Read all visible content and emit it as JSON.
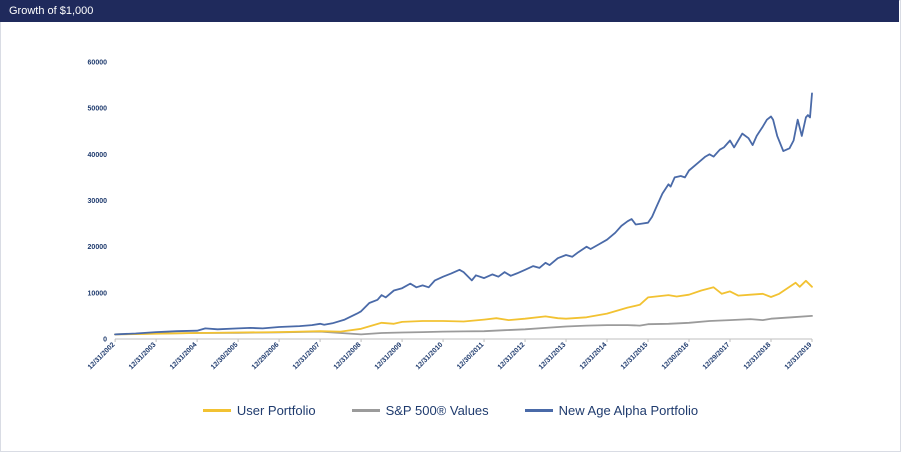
{
  "header": {
    "title": "Growth of $1,000"
  },
  "chart_data": {
    "type": "line",
    "title": "Growth of $1,000",
    "xlabel": "",
    "ylabel": "",
    "ylim": [
      0,
      60000
    ],
    "yticks": [
      0,
      10000,
      20000,
      30000,
      40000,
      50000,
      60000
    ],
    "xlim": [
      2002.997,
      2020.0
    ],
    "xtick_labels": [
      "12/31/2002",
      "12/31/2003",
      "12/31/2004",
      "12/30/2005",
      "12/29/2006",
      "12/31/2007",
      "12/31/2008",
      "12/31/2009",
      "12/31/2010",
      "12/30/2011",
      "12/31/2012",
      "12/31/2013",
      "12/31/2014",
      "12/31/2015",
      "12/30/2016",
      "12/29/2017",
      "12/31/2018",
      "12/31/2019"
    ],
    "xtick_years": [
      2003,
      2004,
      2005,
      2006,
      2007,
      2008,
      2009,
      2010,
      2011,
      2012,
      2013,
      2014,
      2015,
      2016,
      2017,
      2018,
      2019,
      2020
    ],
    "grid": false,
    "legend_position": "bottom",
    "series": [
      {
        "name": "User Portfolio",
        "color": "#f2c232",
        "points": [
          [
            2003,
            1000
          ],
          [
            2004,
            1150
          ],
          [
            2005,
            1300
          ],
          [
            2006,
            1400
          ],
          [
            2007,
            1500
          ],
          [
            2008,
            1700
          ],
          [
            2008.5,
            1600
          ],
          [
            2009,
            2200
          ],
          [
            2009.5,
            3500
          ],
          [
            2009.8,
            3300
          ],
          [
            2010,
            3700
          ],
          [
            2010.5,
            3900
          ],
          [
            2011,
            3900
          ],
          [
            2011.5,
            3800
          ],
          [
            2012,
            4200
          ],
          [
            2012.3,
            4500
          ],
          [
            2012.6,
            4100
          ],
          [
            2013,
            4400
          ],
          [
            2013.5,
            4900
          ],
          [
            2013.8,
            4500
          ],
          [
            2014,
            4400
          ],
          [
            2014.5,
            4700
          ],
          [
            2015,
            5500
          ],
          [
            2015.5,
            6800
          ],
          [
            2015.8,
            7400
          ],
          [
            2016,
            9000
          ],
          [
            2016.5,
            9500
          ],
          [
            2016.7,
            9200
          ],
          [
            2017,
            9600
          ],
          [
            2017.3,
            10500
          ],
          [
            2017.6,
            11200
          ],
          [
            2017.8,
            9800
          ],
          [
            2018,
            10300
          ],
          [
            2018.2,
            9400
          ],
          [
            2018.5,
            9600
          ],
          [
            2018.8,
            9800
          ],
          [
            2019,
            9100
          ],
          [
            2019.2,
            9800
          ],
          [
            2019.4,
            11000
          ],
          [
            2019.6,
            12200
          ],
          [
            2019.7,
            11300
          ],
          [
            2019.85,
            12600
          ],
          [
            2020,
            11300
          ]
        ]
      },
      {
        "name": "S&P 500® Values",
        "color": "#9b9b9b",
        "points": [
          [
            2003,
            1000
          ],
          [
            2004,
            1200
          ],
          [
            2005,
            1300
          ],
          [
            2006,
            1350
          ],
          [
            2007,
            1450
          ],
          [
            2008,
            1600
          ],
          [
            2008.5,
            1300
          ],
          [
            2009,
            1000
          ],
          [
            2009.5,
            1300
          ],
          [
            2010,
            1400
          ],
          [
            2010.5,
            1500
          ],
          [
            2011,
            1600
          ],
          [
            2011.5,
            1650
          ],
          [
            2012,
            1700
          ],
          [
            2012.5,
            1900
          ],
          [
            2013,
            2100
          ],
          [
            2013.5,
            2400
          ],
          [
            2014,
            2700
          ],
          [
            2014.5,
            2900
          ],
          [
            2015,
            3000
          ],
          [
            2015.5,
            3000
          ],
          [
            2015.8,
            2900
          ],
          [
            2016,
            3200
          ],
          [
            2016.5,
            3300
          ],
          [
            2017,
            3500
          ],
          [
            2017.5,
            3900
          ],
          [
            2018,
            4100
          ],
          [
            2018.5,
            4300
          ],
          [
            2018.8,
            4100
          ],
          [
            2019,
            4400
          ],
          [
            2019.5,
            4700
          ],
          [
            2020,
            5000
          ]
        ]
      },
      {
        "name": "New Age Alpha Portfolio",
        "color": "#4a6aa8",
        "points": [
          [
            2003,
            1000
          ],
          [
            2003.5,
            1200
          ],
          [
            2004,
            1500
          ],
          [
            2004.5,
            1700
          ],
          [
            2005,
            1800
          ],
          [
            2005.2,
            2300
          ],
          [
            2005.5,
            2100
          ],
          [
            2006,
            2300
          ],
          [
            2006.3,
            2400
          ],
          [
            2006.6,
            2300
          ],
          [
            2007,
            2600
          ],
          [
            2007.5,
            2800
          ],
          [
            2007.8,
            3000
          ],
          [
            2008,
            3300
          ],
          [
            2008.1,
            3100
          ],
          [
            2008.3,
            3400
          ],
          [
            2008.6,
            4200
          ],
          [
            2008.9,
            5500
          ],
          [
            2009,
            6000
          ],
          [
            2009.2,
            7800
          ],
          [
            2009.4,
            8500
          ],
          [
            2009.5,
            9500
          ],
          [
            2009.6,
            9000
          ],
          [
            2009.8,
            10500
          ],
          [
            2010,
            11000
          ],
          [
            2010.2,
            12000
          ],
          [
            2010.35,
            11200
          ],
          [
            2010.5,
            11600
          ],
          [
            2010.65,
            11200
          ],
          [
            2010.8,
            12700
          ],
          [
            2011,
            13500
          ],
          [
            2011.2,
            14200
          ],
          [
            2011.4,
            15000
          ],
          [
            2011.5,
            14500
          ],
          [
            2011.7,
            12700
          ],
          [
            2011.8,
            13800
          ],
          [
            2012,
            13200
          ],
          [
            2012.2,
            14000
          ],
          [
            2012.35,
            13500
          ],
          [
            2012.5,
            14500
          ],
          [
            2012.65,
            13700
          ],
          [
            2012.8,
            14200
          ],
          [
            2013,
            15000
          ],
          [
            2013.2,
            15800
          ],
          [
            2013.35,
            15400
          ],
          [
            2013.5,
            16500
          ],
          [
            2013.6,
            16000
          ],
          [
            2013.8,
            17500
          ],
          [
            2014,
            18200
          ],
          [
            2014.15,
            17800
          ],
          [
            2014.3,
            18800
          ],
          [
            2014.5,
            20000
          ],
          [
            2014.6,
            19500
          ],
          [
            2014.8,
            20500
          ],
          [
            2015,
            21500
          ],
          [
            2015.2,
            23000
          ],
          [
            2015.35,
            24500
          ],
          [
            2015.5,
            25500
          ],
          [
            2015.6,
            26000
          ],
          [
            2015.7,
            24800
          ],
          [
            2015.85,
            25000
          ],
          [
            2016,
            25200
          ],
          [
            2016.1,
            26500
          ],
          [
            2016.2,
            28500
          ],
          [
            2016.35,
            31500
          ],
          [
            2016.5,
            33500
          ],
          [
            2016.55,
            33000
          ],
          [
            2016.65,
            35000
          ],
          [
            2016.8,
            35300
          ],
          [
            2016.9,
            35000
          ],
          [
            2017,
            36500
          ],
          [
            2017.2,
            38000
          ],
          [
            2017.4,
            39500
          ],
          [
            2017.5,
            40000
          ],
          [
            2017.6,
            39500
          ],
          [
            2017.75,
            41000
          ],
          [
            2017.85,
            41500
          ],
          [
            2018,
            43000
          ],
          [
            2018.1,
            41500
          ],
          [
            2018.2,
            43000
          ],
          [
            2018.3,
            44500
          ],
          [
            2018.45,
            43500
          ],
          [
            2018.55,
            42000
          ],
          [
            2018.65,
            44000
          ],
          [
            2018.8,
            46000
          ],
          [
            2018.9,
            47500
          ],
          [
            2019,
            48200
          ],
          [
            2019.05,
            47500
          ],
          [
            2019.15,
            44000
          ],
          [
            2019.3,
            40700
          ],
          [
            2019.45,
            41300
          ],
          [
            2019.55,
            43000
          ],
          [
            2019.65,
            47500
          ],
          [
            2019.75,
            44000
          ],
          [
            2019.85,
            48000
          ],
          [
            2019.9,
            48500
          ],
          [
            2019.95,
            48000
          ],
          [
            2020.0,
            53200
          ]
        ]
      }
    ]
  }
}
